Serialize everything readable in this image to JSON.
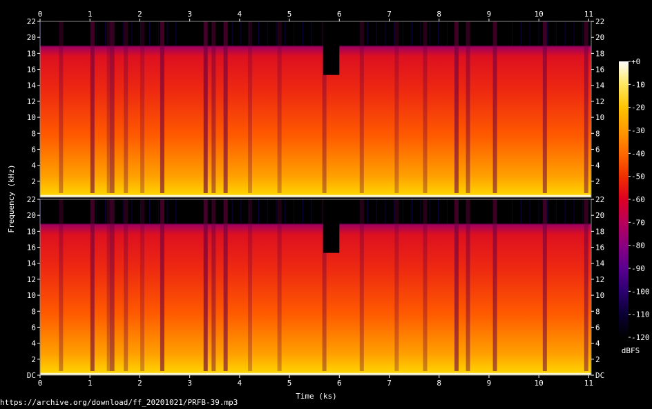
{
  "chart_data": {
    "type": "heatmap",
    "title": "",
    "xlabel": "Time (ks)",
    "ylabel": "Frequency (kHz)",
    "x_ticks": [
      "0",
      "1",
      "2",
      "3",
      "4",
      "5",
      "6",
      "7",
      "8",
      "9",
      "10",
      "11"
    ],
    "xlim": [
      0,
      11.05
    ],
    "channels": [
      {
        "y_ticks": [
          "2",
          "4",
          "6",
          "8",
          "10",
          "12",
          "14",
          "16",
          "18",
          "20",
          "22"
        ],
        "ylim": [
          0,
          22
        ]
      },
      {
        "y_ticks": [
          "DC",
          "2",
          "4",
          "6",
          "8",
          "10",
          "12",
          "14",
          "16",
          "18",
          "20",
          "22"
        ],
        "ylim": [
          0,
          22
        ]
      }
    ],
    "colorbar": {
      "label": "dBFS",
      "ticks": [
        "+0",
        "-10",
        "-20",
        "-30",
        "-40",
        "-50",
        "-60",
        "-70",
        "-80",
        "-90",
        "-100",
        "-110",
        "-120"
      ],
      "range": [
        -120,
        0
      ],
      "colors": [
        "#000000",
        "#0a0033",
        "#2b0070",
        "#5a0090",
        "#8a0080",
        "#b8005a",
        "#dd0022",
        "#f03000",
        "#ff6a00",
        "#ff9a00",
        "#ffc400",
        "#ffe860",
        "#ffffff"
      ]
    },
    "cutoff_khz": 19,
    "dropouts": [
      {
        "t": 0.42,
        "level": 0.35
      },
      {
        "t": 1.05,
        "level": 0.6
      },
      {
        "t": 1.38,
        "level": 0.3
      },
      {
        "t": 1.45,
        "level": 0.5
      },
      {
        "t": 1.72,
        "level": 0.35
      },
      {
        "t": 2.05,
        "level": 0.3
      },
      {
        "t": 2.45,
        "level": 0.6
      },
      {
        "t": 3.32,
        "level": 0.65
      },
      {
        "t": 3.48,
        "level": 0.45
      },
      {
        "t": 3.72,
        "level": 0.6
      },
      {
        "t": 4.21,
        "level": 0.3
      },
      {
        "t": 4.8,
        "level": 0.3
      },
      {
        "t": 5.7,
        "level": 0.4
      },
      {
        "t": 6.45,
        "level": 0.35
      },
      {
        "t": 7.15,
        "level": 0.3
      },
      {
        "t": 7.72,
        "level": 0.35
      },
      {
        "t": 8.35,
        "level": 0.6
      },
      {
        "t": 8.58,
        "level": 0.45
      },
      {
        "t": 9.12,
        "level": 0.55
      },
      {
        "t": 10.12,
        "level": 0.55
      },
      {
        "t": 10.95,
        "level": 0.5
      }
    ],
    "notch": {
      "t_start": 5.68,
      "t_end": 6.0,
      "khz": 15.3
    }
  },
  "footer": {
    "source": "https://archive.org/download/ff_20201021/PRFB-39.mp3"
  }
}
